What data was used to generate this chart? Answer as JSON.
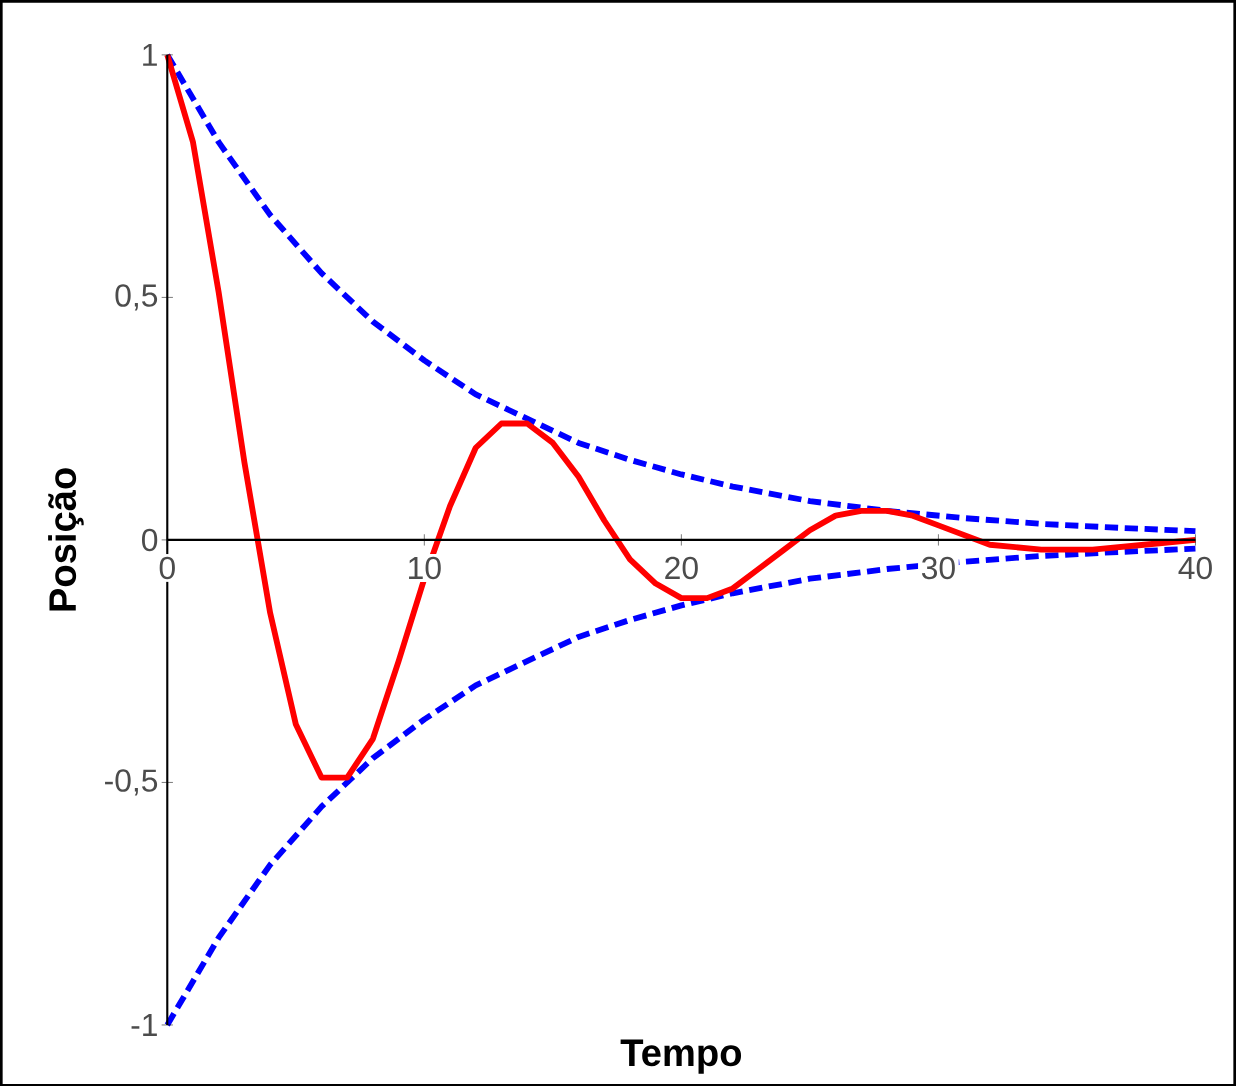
{
  "chart_data": {
    "type": "line",
    "xlabel": "Tempo",
    "ylabel": "Posição",
    "xlim": [
      0,
      40
    ],
    "ylim": [
      -1,
      1
    ],
    "xticks": [
      0,
      10,
      20,
      30,
      40
    ],
    "yticks": [
      {
        "value": -1,
        "label": "-1"
      },
      {
        "value": -0.5,
        "label": "-0,5"
      },
      {
        "value": 0,
        "label": "0"
      },
      {
        "value": 0.5,
        "label": "0,5"
      },
      {
        "value": 1,
        "label": "1"
      }
    ],
    "grid": false,
    "marker": "none",
    "series": [
      {
        "color": "#0000ff",
        "line_style": "dashed",
        "x": [
          0,
          2,
          4,
          6,
          8,
          10,
          12,
          14,
          16,
          18,
          20,
          22,
          25,
          28,
          31,
          34,
          37,
          40
        ],
        "values": [
          1,
          0.82,
          0.67,
          0.55,
          0.45,
          0.37,
          0.3,
          0.25,
          0.2,
          0.165,
          0.135,
          0.11,
          0.08,
          0.06,
          0.045,
          0.033,
          0.025,
          0.018
        ]
      },
      {
        "color": "#0000ff",
        "line_style": "dashed",
        "x": [
          0,
          2,
          4,
          6,
          8,
          10,
          12,
          14,
          16,
          18,
          20,
          22,
          25,
          28,
          31,
          34,
          37,
          40
        ],
        "values": [
          -1,
          -0.82,
          -0.67,
          -0.55,
          -0.45,
          -0.37,
          -0.3,
          -0.25,
          -0.2,
          -0.165,
          -0.135,
          -0.11,
          -0.08,
          -0.06,
          -0.045,
          -0.033,
          -0.025,
          -0.018
        ]
      },
      {
        "color": "#ff0000",
        "line_style": "solid",
        "x": [
          0,
          1,
          2,
          3,
          4,
          5,
          6,
          7,
          8,
          9,
          10,
          11,
          12,
          13,
          14,
          15,
          16,
          17,
          18,
          19,
          20,
          21,
          22,
          23,
          24,
          25,
          26,
          27,
          28,
          29,
          30,
          32,
          34,
          36,
          38,
          40
        ],
        "values": [
          1,
          0.82,
          0.51,
          0.16,
          -0.15,
          -0.38,
          -0.49,
          -0.49,
          -0.41,
          -0.25,
          -0.08,
          0.07,
          0.19,
          0.24,
          0.24,
          0.2,
          0.13,
          0.04,
          -0.04,
          -0.09,
          -0.12,
          -0.12,
          -0.1,
          -0.06,
          -0.02,
          0.02,
          0.05,
          0.06,
          0.06,
          0.05,
          0.03,
          -0.01,
          -0.02,
          -0.02,
          -0.01,
          0
        ]
      }
    ]
  }
}
